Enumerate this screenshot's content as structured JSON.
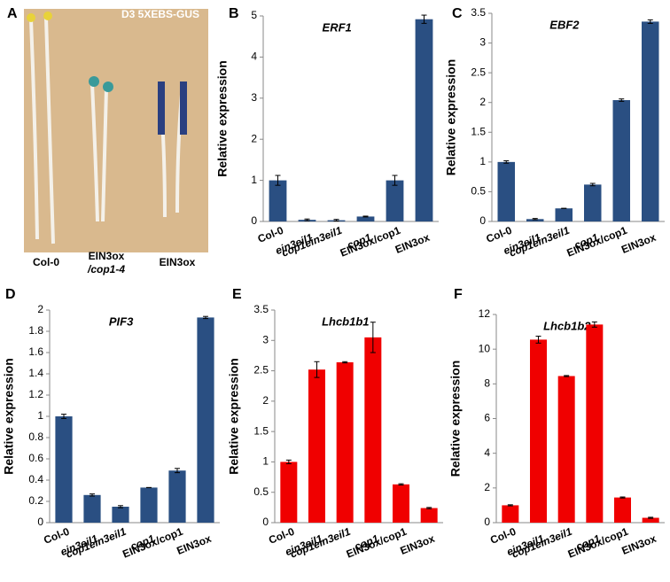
{
  "panel_a": {
    "label": "A",
    "title": "D3 5XEBS-GUS",
    "captions": [
      "Col-0",
      "EIN3ox",
      "/cop1-4",
      "EIN3ox"
    ]
  },
  "chart_data": [
    {
      "type": "bar",
      "panel": "B",
      "title": "ERF1",
      "y_label": "Relative expression",
      "color": "#2a4f82",
      "categories": [
        "Col-0",
        "ein3eil1",
        "cop1ein3eil1",
        "cop1",
        "EIN3ox/cop1",
        "EIN3ox"
      ],
      "values": [
        1.0,
        0.04,
        0.03,
        0.12,
        1.0,
        4.92
      ],
      "errors": [
        0.12,
        0.02,
        0.02,
        0.01,
        0.12,
        0.1
      ],
      "ylim": [
        0,
        5
      ],
      "yticks": [
        0,
        1,
        2,
        3,
        4,
        5
      ]
    },
    {
      "type": "bar",
      "panel": "C",
      "title": "EBF2",
      "y_label": "Relative expression",
      "color": "#2a4f82",
      "categories": [
        "Col-0",
        "ein3eil1",
        "cop1ein3eil1",
        "cop1",
        "EIN3ox/cop1",
        "EIN3ox"
      ],
      "values": [
        1.0,
        0.04,
        0.22,
        0.62,
        2.04,
        3.36
      ],
      "errors": [
        0.02,
        0.01,
        0.0,
        0.02,
        0.02,
        0.03
      ],
      "ylim": [
        0,
        3.5
      ],
      "yticks": [
        0,
        0.5,
        1,
        1.5,
        2,
        2.5,
        3,
        3.5
      ]
    },
    {
      "type": "bar",
      "panel": "D",
      "title": "PIF3",
      "y_label": "Relative expression",
      "color": "#2a4f82",
      "categories": [
        "Col-0",
        "ein3eil1",
        "cop1ein3eil1",
        "cop1",
        "EIN3ox/cop1",
        "EIN3ox"
      ],
      "values": [
        1.0,
        0.26,
        0.15,
        0.33,
        0.49,
        1.93
      ],
      "errors": [
        0.02,
        0.01,
        0.01,
        0.0,
        0.02,
        0.01
      ],
      "ylim": [
        0,
        2
      ],
      "yticks": [
        0,
        0.2,
        0.4,
        0.6,
        0.8,
        1,
        1.2,
        1.4,
        1.6,
        1.8,
        2
      ]
    },
    {
      "type": "bar",
      "panel": "E",
      "title": "Lhcb1b1",
      "y_label": "Relative expression",
      "color": "#f00000",
      "categories": [
        "Col-0",
        "ein3eil1",
        "cop1ein3eil1",
        "cop1",
        "EIN3ox/cop1",
        "EIN3ox"
      ],
      "values": [
        1.0,
        2.52,
        2.64,
        3.05,
        0.63,
        0.24
      ],
      "errors": [
        0.03,
        0.13,
        0.01,
        0.25,
        0.01,
        0.01
      ],
      "ylim": [
        0,
        3.5
      ],
      "yticks": [
        0,
        0.5,
        1,
        1.5,
        2,
        2.5,
        3,
        3.5
      ]
    },
    {
      "type": "bar",
      "panel": "F",
      "title": "Lhcb1b2",
      "y_label": "Relative expression",
      "color": "#f00000",
      "categories": [
        "Col-0",
        "ein3eil1",
        "cop1ein3eil1",
        "cop1",
        "EIN3ox/cop1",
        "EIN3ox"
      ],
      "values": [
        1.0,
        10.55,
        8.45,
        11.42,
        1.45,
        0.28
      ],
      "errors": [
        0.03,
        0.2,
        0.03,
        0.15,
        0.03,
        0.03
      ],
      "ylim": [
        0,
        12
      ],
      "yticks": [
        0,
        2,
        4,
        6,
        8,
        10,
        12
      ]
    }
  ]
}
